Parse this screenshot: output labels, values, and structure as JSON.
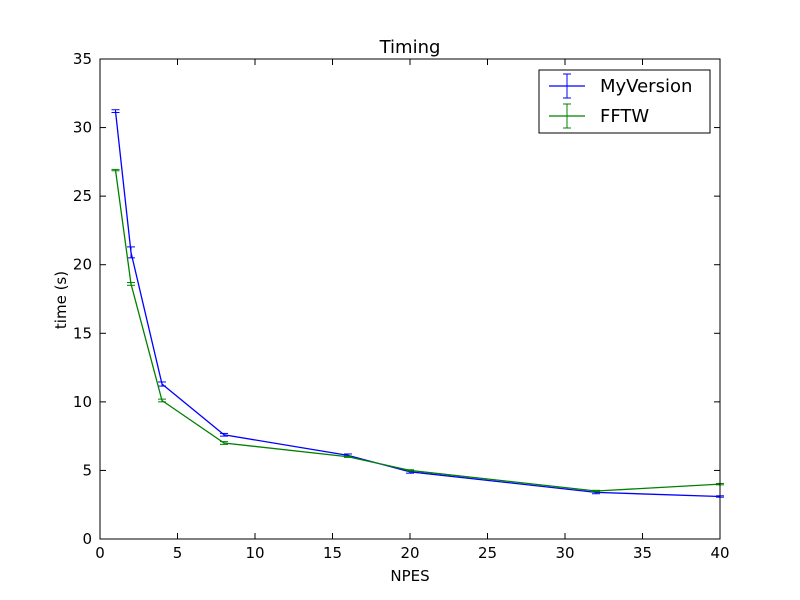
{
  "chart_data": {
    "type": "line",
    "title": "Timing",
    "xlabel": "NPES",
    "ylabel": "time (s)",
    "xlim": [
      0,
      40
    ],
    "ylim": [
      0,
      35
    ],
    "xticks": [
      0,
      5,
      10,
      15,
      20,
      25,
      30,
      35,
      40
    ],
    "yticks": [
      0,
      5,
      10,
      15,
      20,
      25,
      30,
      35
    ],
    "grid": false,
    "legend_position": "top-right",
    "error_bars": true,
    "series": [
      {
        "name": "MyVersion",
        "color": "#0000ff",
        "x": [
          1,
          2,
          4,
          8,
          16,
          20,
          32,
          40
        ],
        "y": [
          31.2,
          20.9,
          11.3,
          7.6,
          6.1,
          4.9,
          3.4,
          3.1
        ],
        "err": [
          0.1,
          0.4,
          0.15,
          0.1,
          0.1,
          0.1,
          0.1,
          0.05
        ]
      },
      {
        "name": "FFTW",
        "color": "#008000",
        "x": [
          1,
          2,
          4,
          8,
          16,
          20,
          32,
          40
        ],
        "y": [
          26.9,
          18.6,
          10.1,
          7.0,
          6.0,
          5.0,
          3.5,
          4.0
        ],
        "err": [
          0.05,
          0.1,
          0.1,
          0.1,
          0.05,
          0.05,
          0.05,
          0.05
        ]
      }
    ]
  }
}
